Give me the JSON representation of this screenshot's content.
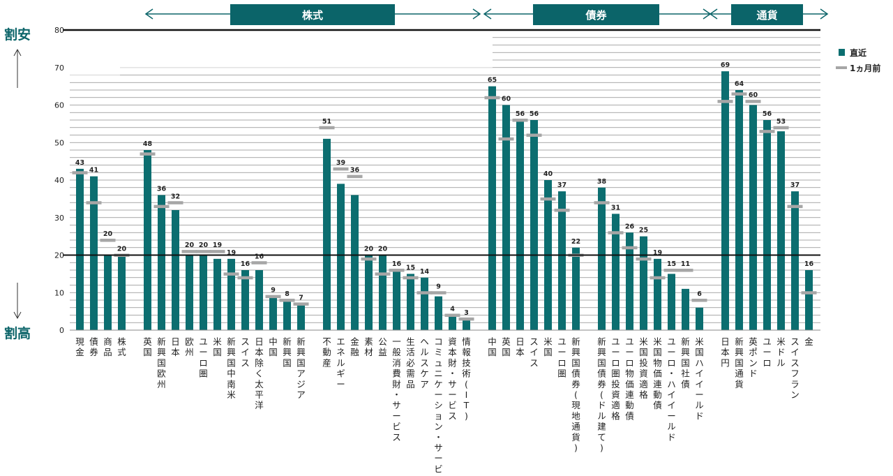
{
  "colors": {
    "bar": "#0c6e70",
    "prev_marker": "#a6a6a6",
    "accent": "#0b6469",
    "grid": "#8c8c8c",
    "axis": "#111111"
  },
  "side_labels": {
    "top": "割安",
    "bottom": "割高"
  },
  "legend": [
    {
      "label": "直近",
      "kind": "bar"
    },
    {
      "label": "1ヵ月前",
      "kind": "marker"
    }
  ],
  "sections": [
    {
      "label": "株式",
      "from": 5,
      "to": 21
    },
    {
      "label": "債券",
      "from": 22,
      "to": 37
    },
    {
      "label": "通貨",
      "from": 38,
      "to": 44
    }
  ],
  "chart_data": {
    "type": "bar",
    "ylim": [
      0,
      80
    ],
    "yticks": [
      0,
      10,
      20,
      30,
      40,
      50,
      60,
      70,
      80
    ],
    "neutral_line": 20,
    "grid": true,
    "legend_position": "top-right",
    "categories": [
      "現金",
      "債券",
      "商品",
      "株式",
      "英国",
      "新興国欧州",
      "日本",
      "欧州",
      "ユーロ圏",
      "米国",
      "新興国中南米",
      "スイス",
      "日本除く太平洋",
      "中国",
      "新興国",
      "新興国アジア",
      "不動産",
      "エネルギー",
      "金融",
      "素材",
      "公益",
      "一般消費財・サービス",
      "生活必需品",
      "ヘルスケア",
      "コミュニケーション・サービス",
      "資本財・サービス",
      "情報技術(IT)",
      "中国",
      "英国",
      "日本",
      "スイス",
      "米国",
      "ユーロ圏",
      "新興国債券(現地通貨)",
      "新興国債券(ドル建て)",
      "ユーロ圏投資適格",
      "ユーロ物価連動債",
      "米国投資適格",
      "米国物価連動債",
      "ユーロ・ハイイールド",
      "新興国社債",
      "米国ハイイールド",
      "日本円",
      "新興国通貨",
      "英ポンド",
      "ユーロ",
      "米ドル",
      "スイスフラン",
      "金"
    ],
    "groups": [
      [
        0,
        3
      ],
      [
        4,
        15
      ],
      [
        16,
        26
      ],
      [
        27,
        33
      ],
      [
        34,
        41
      ],
      [
        42,
        48
      ]
    ],
    "series": [
      {
        "name": "直近",
        "values": [
          43,
          41,
          20,
          20,
          48,
          36,
          32,
          20,
          20,
          19,
          19,
          16,
          16,
          9,
          8,
          7,
          51,
          39,
          36,
          20,
          20,
          16,
          15,
          14,
          9,
          4,
          3,
          65,
          60,
          56,
          56,
          40,
          37,
          22,
          38,
          31,
          26,
          25,
          19,
          15,
          11,
          6,
          69,
          64,
          60,
          56,
          53,
          37,
          16
        ]
      },
      {
        "name": "1ヵ月前",
        "values": [
          42,
          34,
          24,
          20,
          47,
          33,
          34,
          21,
          21,
          21,
          15,
          14,
          18,
          9,
          8,
          7,
          54,
          43,
          41,
          19,
          15,
          16,
          14,
          10,
          10,
          4,
          3,
          62,
          51,
          56,
          52,
          35,
          32,
          20,
          34,
          26,
          22,
          19,
          14,
          16,
          16,
          8,
          61,
          63,
          61,
          53,
          54,
          33,
          10
        ]
      }
    ]
  }
}
